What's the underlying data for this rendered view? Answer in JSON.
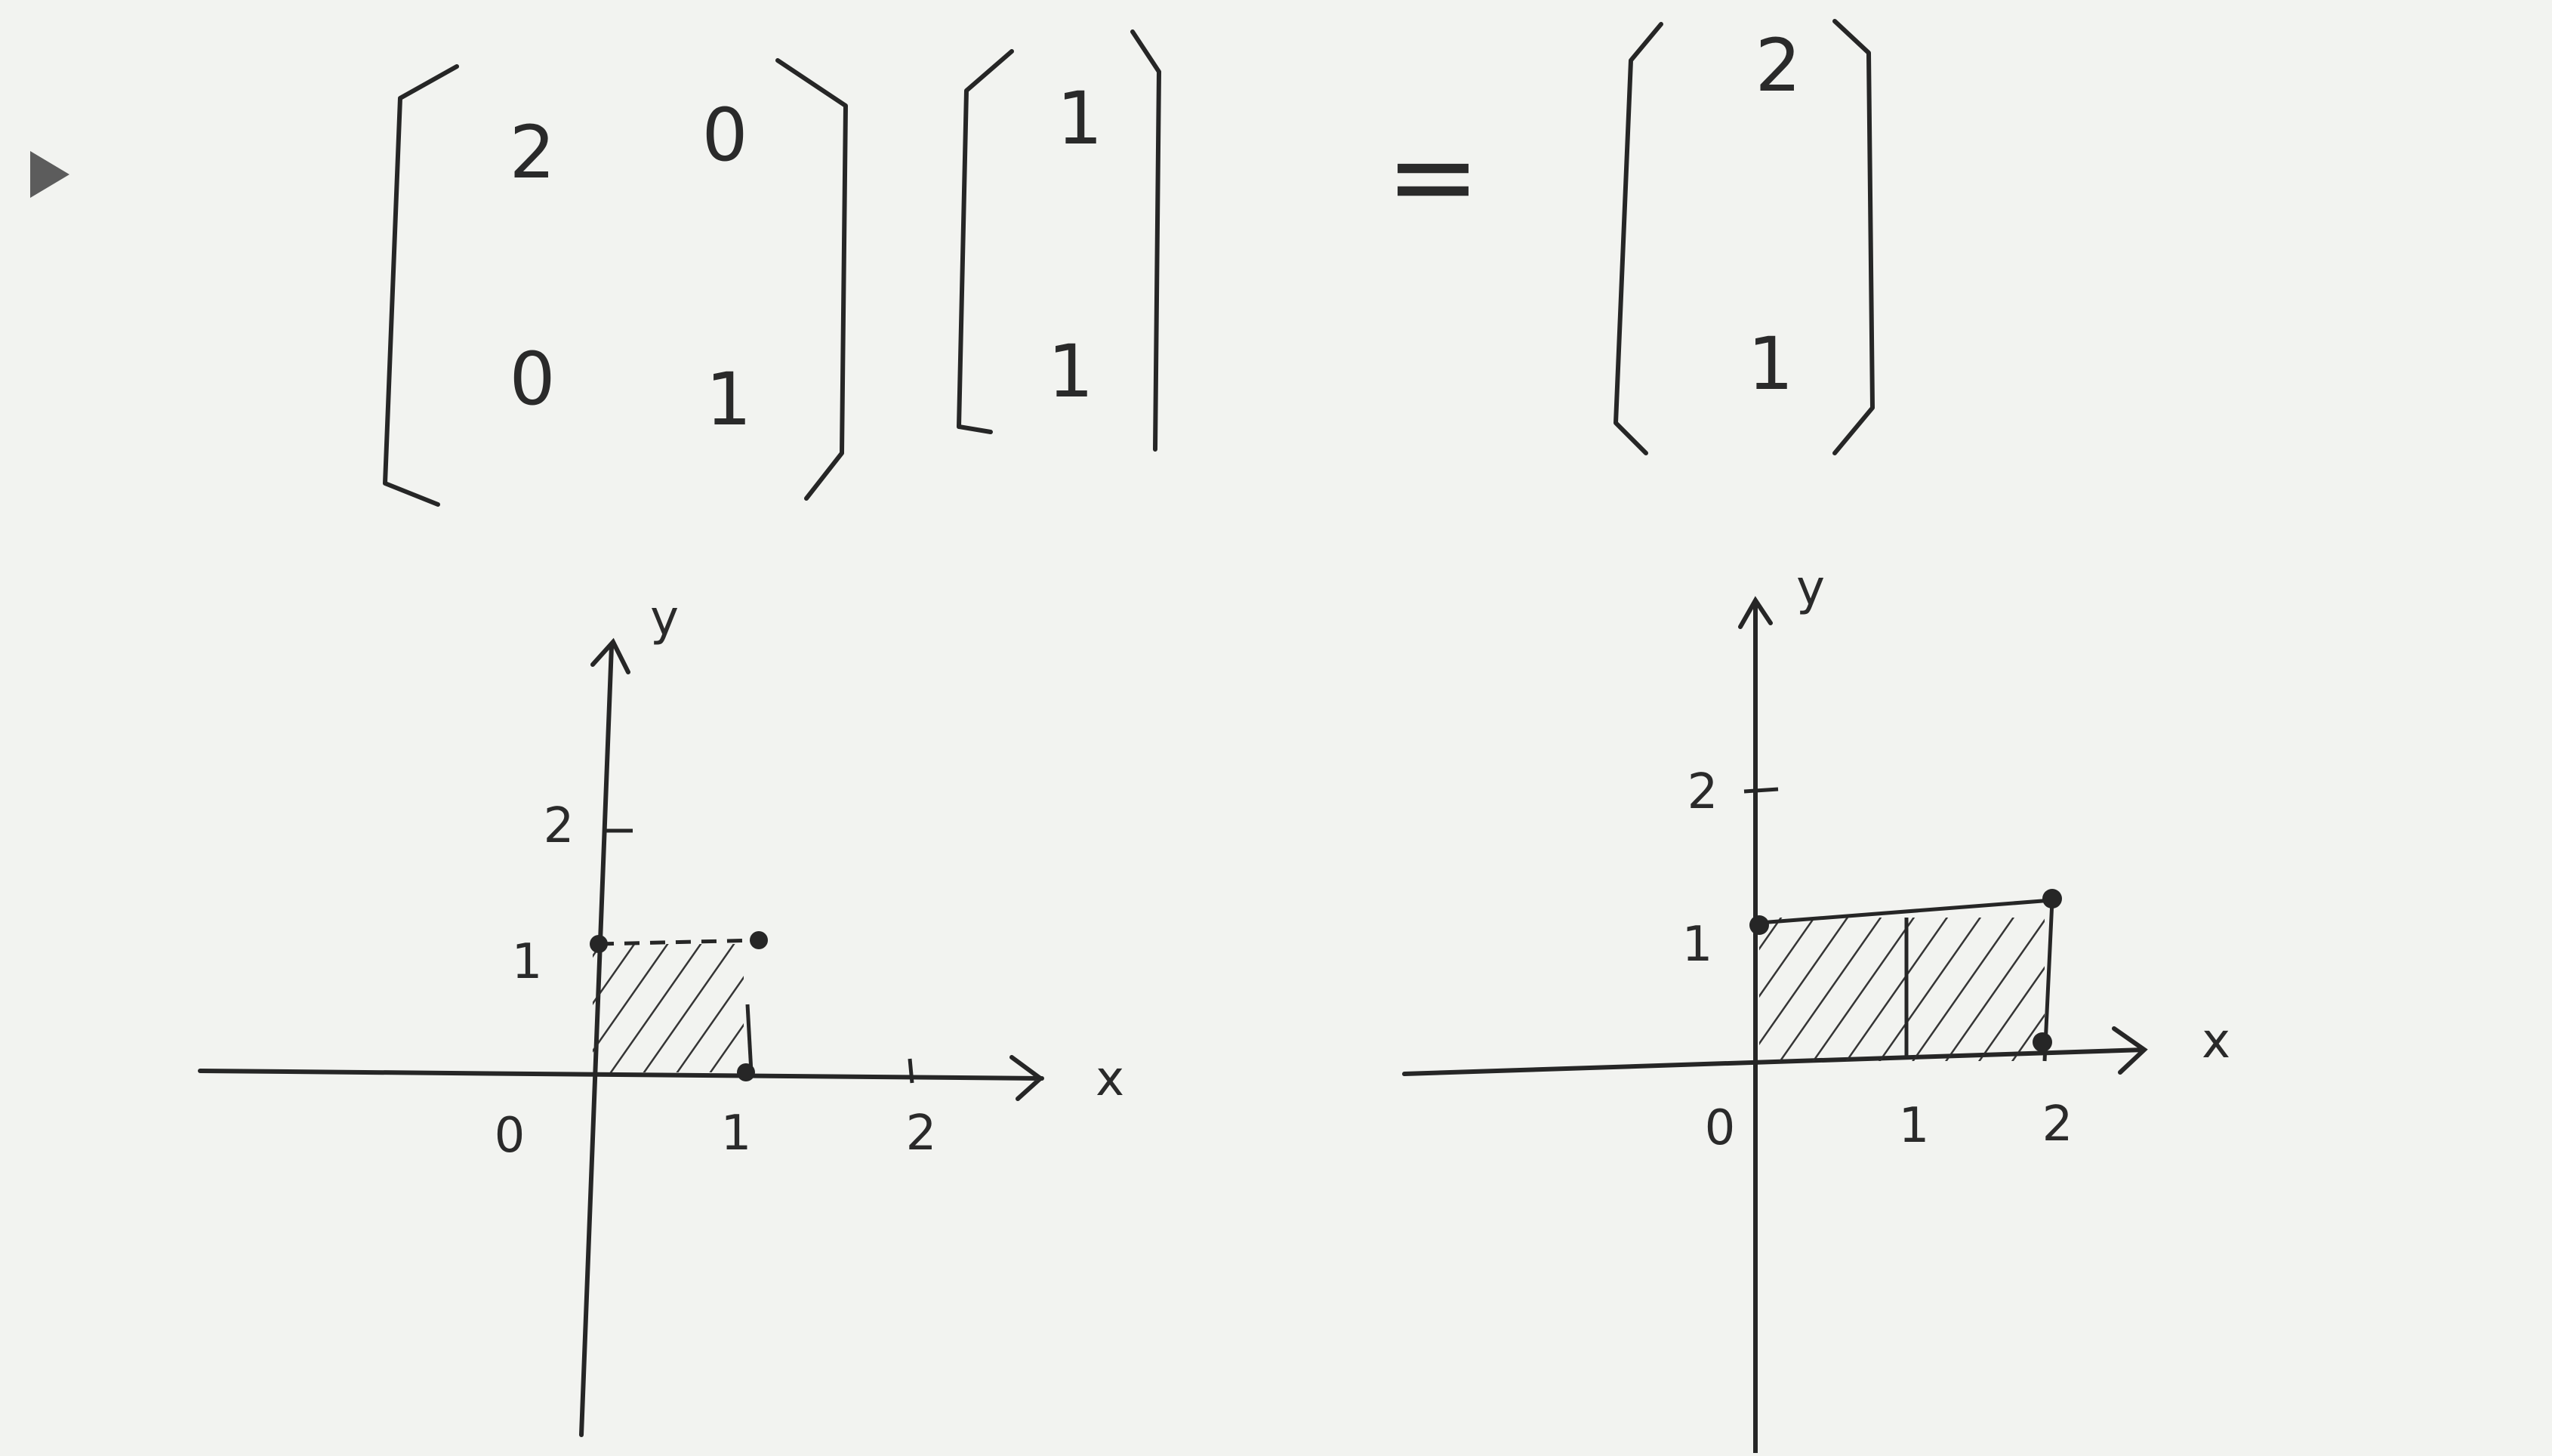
{
  "paper": {
    "ink": "#262626",
    "background": "#f2f3f0",
    "marker_color": "#5c5c5c"
  },
  "bullet": {
    "icon": "triangle-right-icon"
  },
  "equation": {
    "matrix": [
      [
        "2",
        "0"
      ],
      [
        "0",
        "1"
      ]
    ],
    "vector": [
      "1",
      "1"
    ],
    "equals": "=",
    "result": [
      "2",
      "1"
    ]
  },
  "plots": [
    {
      "id": "before",
      "xlabel": "x",
      "ylabel": "y",
      "origin_label": "0",
      "x_ticks": [
        "1",
        "2"
      ],
      "y_ticks": [
        "1",
        "2"
      ],
      "shape": "unit square",
      "corners": [
        [
          0,
          1
        ],
        [
          1,
          1
        ],
        [
          1,
          0
        ]
      ]
    },
    {
      "id": "after",
      "xlabel": "x",
      "ylabel": "y",
      "origin_label": "0",
      "x_ticks": [
        "1",
        "2"
      ],
      "y_ticks": [
        "1",
        "2"
      ],
      "shape": "stretched rectangle",
      "corners": [
        [
          0,
          1
        ],
        [
          2,
          1
        ],
        [
          2,
          0
        ]
      ]
    }
  ]
}
